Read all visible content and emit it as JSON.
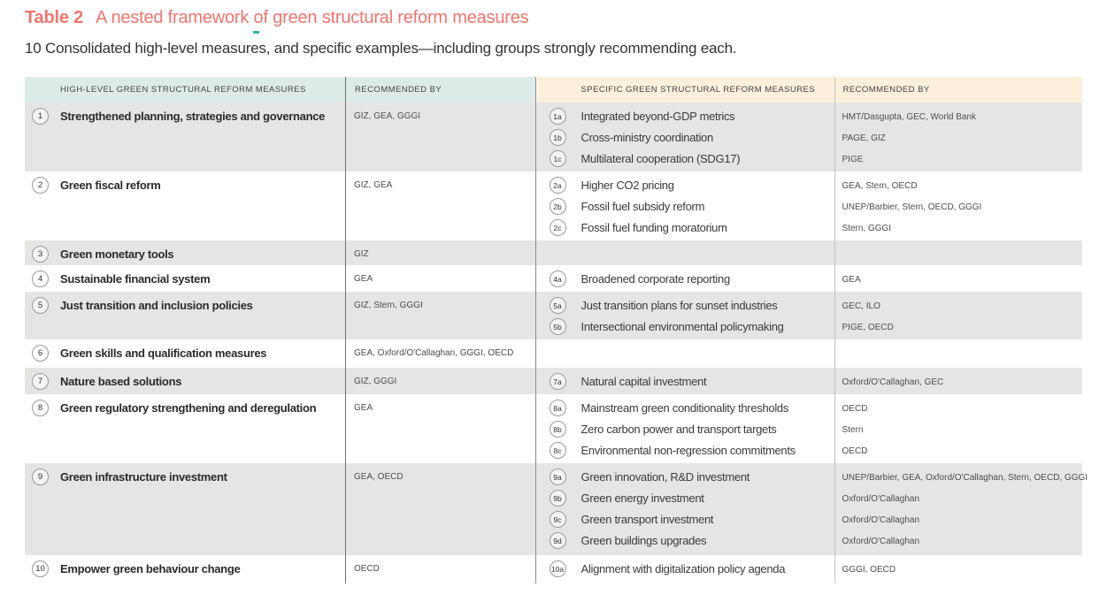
{
  "title": {
    "label": "Table 2",
    "text": "A nested framework of green structural reform measures"
  },
  "subtitle": "10 Consolidated high-level measures, and specific examples—including groups strongly recommending each.",
  "colors": {
    "title_accent": "#f3756d",
    "header_left_bg": "#dcebe8",
    "header_right_bg": "#fcefdc",
    "row_shaded_bg": "#e5e5e3",
    "dash_teal": "#2fb5a4"
  },
  "table": {
    "headers": {
      "high_level": "HIGH-LEVEL GREEN STRUCTURAL REFORM MEASURES",
      "recommended_left": "RECOMMENDED BY",
      "specific": "SPECIFIC GREEN STRUCTURAL REFORM MEASURES",
      "recommended_right": "RECOMMENDED BY"
    },
    "rows": [
      {
        "num": "1",
        "measure": "Strengthened planning, strategies and governance",
        "recommended_by": "GIZ, GEA, GGGI",
        "shaded": true,
        "specifics": [
          {
            "id": "1a",
            "measure": "Integrated beyond-GDP metrics",
            "recommended_by": "HMT/Dasgupta, GEC, World Bank"
          },
          {
            "id": "1b",
            "measure": "Cross-ministry coordination",
            "recommended_by": "PAGE, GIZ"
          },
          {
            "id": "1c",
            "measure": "Multilateral cooperation (SDG17)",
            "recommended_by": "PIGE"
          }
        ]
      },
      {
        "num": "2",
        "measure": "Green fiscal reform",
        "recommended_by": "GIZ, GEA",
        "shaded": false,
        "specifics": [
          {
            "id": "2a",
            "measure": "Higher CO2 pricing",
            "recommended_by": "GEA, Stern, OECD"
          },
          {
            "id": "2b",
            "measure": "Fossil fuel subsidy reform",
            "recommended_by": "UNEP/Barbier, Stern, OECD, GGGI"
          },
          {
            "id": "2c",
            "measure": "Fossil fuel funding moratorium",
            "recommended_by": "Stern, GGGI"
          }
        ]
      },
      {
        "num": "3",
        "measure": "Green monetary tools",
        "recommended_by": "GIZ",
        "shaded": true,
        "specifics": []
      },
      {
        "num": "4",
        "measure": "Sustainable financial system",
        "recommended_by": "GEA",
        "shaded": false,
        "specifics": [
          {
            "id": "4a",
            "measure": "Broadened corporate reporting",
            "recommended_by": "GEA"
          }
        ]
      },
      {
        "num": "5",
        "measure": "Just transition and inclusion policies",
        "recommended_by": "GIZ, Stern, GGGI",
        "shaded": true,
        "specifics": [
          {
            "id": "5a",
            "measure": "Just transition plans for sunset industries",
            "recommended_by": "GEC, ILO"
          },
          {
            "id": "5b",
            "measure": "Intersectional environmental policymaking",
            "recommended_by": "PIGE, OECD"
          }
        ]
      },
      {
        "num": "6",
        "measure": "Green skills and qualification measures",
        "recommended_by": "GEA, Oxford/O'Callaghan, GGGI, OECD",
        "shaded": false,
        "specifics": []
      },
      {
        "num": "7",
        "measure": "Nature based solutions",
        "recommended_by": "GIZ, GGGI",
        "shaded": true,
        "specifics": [
          {
            "id": "7a",
            "measure": "Natural capital investment",
            "recommended_by": "Oxford/O'Callaghan, GEC"
          }
        ]
      },
      {
        "num": "8",
        "measure": "Green regulatory strengthening and deregulation",
        "recommended_by": "GEA",
        "shaded": false,
        "specifics": [
          {
            "id": "8a",
            "measure": "Mainstream green conditionality thresholds",
            "recommended_by": "OECD"
          },
          {
            "id": "8b",
            "measure": "Zero carbon power and transport targets",
            "recommended_by": "Stern"
          },
          {
            "id": "8c",
            "measure": "Environmental non-regression commitments",
            "recommended_by": "OECD"
          }
        ]
      },
      {
        "num": "9",
        "measure": "Green infrastructure investment",
        "recommended_by": "GEA, OECD",
        "shaded": true,
        "specifics": [
          {
            "id": "9a",
            "measure": "Green innovation, R&D investment",
            "recommended_by": "UNEP/Barbier, GEA, Oxford/O'Callaghan, Stern, OECD, GGGI"
          },
          {
            "id": "9b",
            "measure": "Green energy investment",
            "recommended_by": "Oxford/O'Callaghan"
          },
          {
            "id": "9c",
            "measure": "Green transport investment",
            "recommended_by": "Oxford/O'Callaghan"
          },
          {
            "id": "9d",
            "measure": "Green buildings upgrades",
            "recommended_by": "Oxford/O'Callaghan"
          }
        ]
      },
      {
        "num": "10",
        "measure": "Empower green behaviour change",
        "recommended_by": "OECD",
        "shaded": false,
        "specifics": [
          {
            "id": "10a",
            "measure": "Alignment with digitalization policy agenda",
            "recommended_by": "GGGI, OECD"
          }
        ]
      }
    ]
  }
}
